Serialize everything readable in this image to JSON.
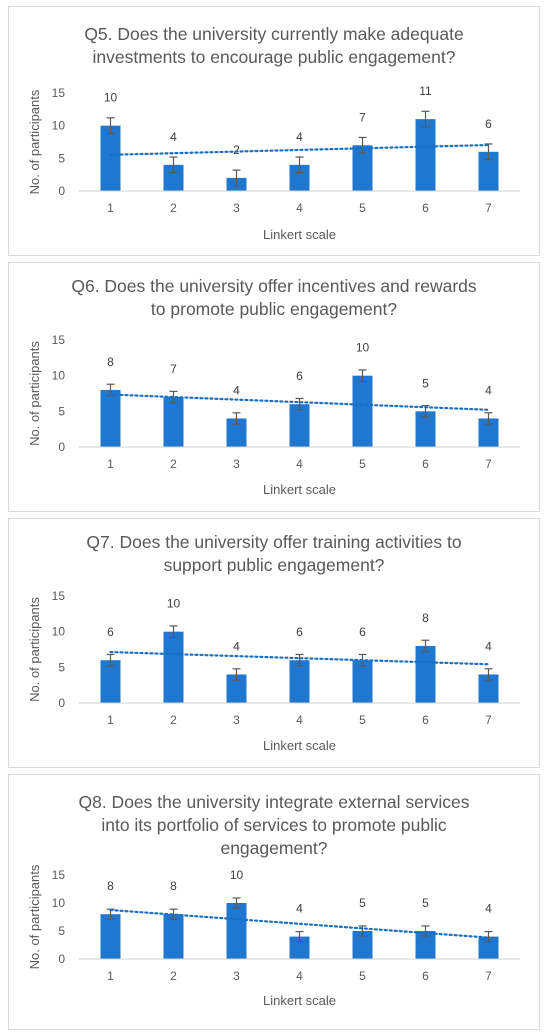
{
  "chart_data": [
    {
      "type": "bar",
      "title": [
        "Q5. Does the university currently make adequate",
        "investments to encourage public engagement?"
      ],
      "xlabel": "Linkert scale",
      "ylabel": "No. of participants",
      "categories": [
        "1",
        "2",
        "3",
        "4",
        "5",
        "6",
        "7"
      ],
      "values": [
        10,
        4,
        2,
        4,
        7,
        11,
        6
      ],
      "data_labels": [
        "10",
        "4",
        "2",
        "4",
        "7",
        "11",
        "6"
      ],
      "yticks": [
        "0",
        "5",
        "10",
        "15"
      ],
      "ylim": [
        0,
        15
      ],
      "error_bars": [
        1.2,
        1.2,
        1.2,
        1.2,
        1.2,
        1.2,
        1.2
      ],
      "trendline": {
        "type": "linear",
        "style": "dotted"
      },
      "grid": false,
      "colors": {
        "bar": "#1f77d0",
        "trend": "#1a6fc2",
        "error": "#595959"
      }
    },
    {
      "type": "bar",
      "title": [
        "Q6. Does the university offer incentives and rewards",
        "to promote public engagement?"
      ],
      "xlabel": "Linkert scale",
      "ylabel": "No. of participants",
      "categories": [
        "1",
        "2",
        "3",
        "4",
        "5",
        "6",
        "7"
      ],
      "values": [
        8,
        7,
        4,
        6,
        10,
        5,
        4
      ],
      "data_labels": [
        "8",
        "7",
        "4",
        "6",
        "10",
        "5",
        "4"
      ],
      "yticks": [
        "0",
        "5",
        "10",
        "15"
      ],
      "ylim": [
        0,
        15
      ],
      "error_bars": [
        0.8,
        0.8,
        0.8,
        0.8,
        0.8,
        0.8,
        0.8
      ],
      "trendline": {
        "type": "linear",
        "style": "dotted"
      },
      "grid": false,
      "colors": {
        "bar": "#1f77d0",
        "trend": "#1a6fc2",
        "error": "#595959"
      }
    },
    {
      "type": "bar",
      "title": [
        "Q7. Does the university offer training activities to",
        "support public engagement?"
      ],
      "xlabel": "Linkert scale",
      "ylabel": "No. of participants",
      "categories": [
        "1",
        "2",
        "3",
        "4",
        "5",
        "6",
        "7"
      ],
      "values": [
        6,
        10,
        4,
        6,
        6,
        8,
        4
      ],
      "data_labels": [
        "6",
        "10",
        "4",
        "6",
        "6",
        "8",
        "4"
      ],
      "yticks": [
        "0",
        "5",
        "10",
        "15"
      ],
      "ylim": [
        0,
        15
      ],
      "error_bars": [
        0.8,
        0.8,
        0.8,
        0.8,
        0.8,
        0.8,
        0.8
      ],
      "trendline": {
        "type": "linear",
        "style": "dotted"
      },
      "grid": false,
      "colors": {
        "bar": "#1f77d0",
        "trend": "#1a6fc2",
        "error": "#595959"
      }
    },
    {
      "type": "bar",
      "title": [
        "Q8. Does the university integrate external services",
        "into its portfolio of services to promote public",
        "engagement?"
      ],
      "xlabel": "Linkert scale",
      "ylabel": "No. of participants",
      "categories": [
        "1",
        "2",
        "3",
        "4",
        "5",
        "6",
        "7"
      ],
      "values": [
        8,
        8,
        10,
        4,
        5,
        5,
        4
      ],
      "data_labels": [
        "8",
        "8",
        "10",
        "4",
        "5",
        "5",
        "4"
      ],
      "yticks": [
        "0",
        "5",
        "10",
        "15"
      ],
      "ylim": [
        0,
        15
      ],
      "error_bars": [
        0.9,
        0.9,
        0.9,
        0.9,
        0.9,
        0.9,
        0.9
      ],
      "trendline": {
        "type": "linear",
        "style": "dotted"
      },
      "grid": false,
      "colors": {
        "bar": "#1f77d0",
        "trend": "#1a6fc2",
        "error": "#595959"
      }
    }
  ]
}
